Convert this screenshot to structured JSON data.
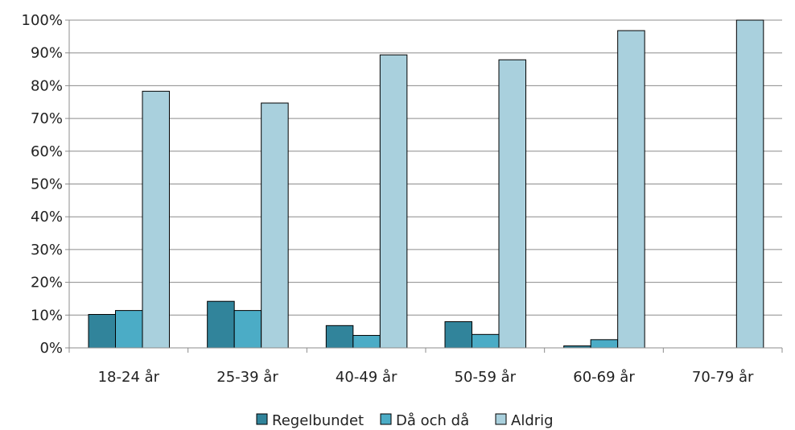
{
  "chart_data": {
    "type": "bar",
    "categories": [
      "18-24 år",
      "25-39 år",
      "40-49 år",
      "50-59 år",
      "60-69 år",
      "70-79 år"
    ],
    "series": [
      {
        "name": "Regelbundet",
        "color": "#31849b",
        "values": [
          10.2,
          14.2,
          6.8,
          8.0,
          0.6,
          0
        ]
      },
      {
        "name": "Då och då",
        "color": "#4bacc6",
        "values": [
          11.4,
          11.4,
          3.8,
          4.1,
          2.5,
          0
        ]
      },
      {
        "name": "Aldrig",
        "color": "#a9d0dd",
        "values": [
          78.3,
          74.7,
          89.4,
          87.9,
          96.8,
          100
        ]
      }
    ],
    "yticks": [
      "0%",
      "10%",
      "20%",
      "30%",
      "40%",
      "50%",
      "60%",
      "70%",
      "80%",
      "90%",
      "100%"
    ],
    "ylim": [
      0,
      100
    ],
    "grid": true,
    "legend_position": "bottom"
  }
}
